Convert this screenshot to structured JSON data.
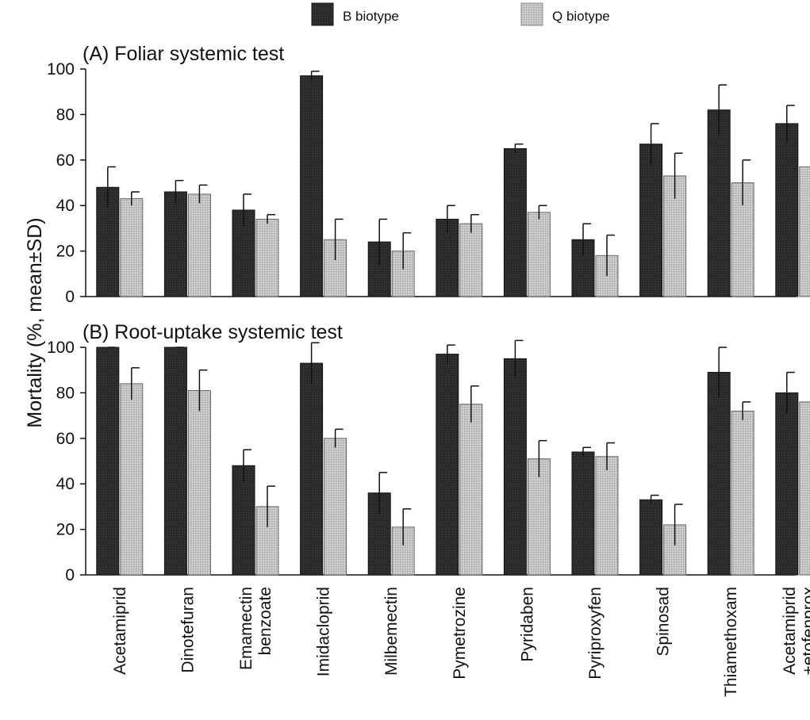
{
  "legend": {
    "items": [
      {
        "label": "B biotype",
        "color": "#2b2b2b"
      },
      {
        "label": "Q biotype",
        "color": "#bdbdbd"
      }
    ]
  },
  "ylabel": "Mortality (%, mean±SD)",
  "chart_data": {
    "type": "bar",
    "categories": [
      [
        "Acetamiprid"
      ],
      [
        "Dinotefuran"
      ],
      [
        "Emamectin",
        "benzoate"
      ],
      [
        "Imidacloprid"
      ],
      [
        "Milbemectin"
      ],
      [
        "Pymetrozine"
      ],
      [
        "Pyridaben"
      ],
      [
        "Pyriproxyfen"
      ],
      [
        "Spinosad"
      ],
      [
        "Thiamethoxam"
      ],
      [
        "Acetamiprid",
        "+etofenprox"
      ]
    ],
    "ylim": [
      0,
      100
    ],
    "yticks": [
      "0",
      "20",
      "40",
      "60",
      "80",
      "100"
    ],
    "panels": [
      {
        "title": "(A) Foliar systemic test",
        "series": [
          {
            "name": "B biotype",
            "values": [
              48,
              46,
              38,
              97,
              24,
              34,
              65,
              25,
              67,
              82,
              76
            ],
            "sd": [
              9,
              5,
              7,
              2,
              10,
              6,
              2,
              7,
              9,
              11,
              8
            ]
          },
          {
            "name": "Q biotype",
            "values": [
              43,
              45,
              34,
              25,
              20,
              32,
              37,
              18,
              53,
              50,
              57
            ],
            "sd": [
              3,
              4,
              2,
              9,
              8,
              4,
              3,
              9,
              10,
              10,
              2
            ]
          }
        ]
      },
      {
        "title": "(B) Root-uptake systemic test",
        "series": [
          {
            "name": "B biotype",
            "values": [
              100,
              100,
              48,
              93,
              36,
              97,
              95,
              54,
              33,
              89,
              80
            ],
            "sd": [
              0,
              0,
              7,
              9,
              9,
              4,
              8,
              2,
              2,
              11,
              9
            ]
          },
          {
            "name": "Q biotype",
            "values": [
              84,
              81,
              30,
              60,
              21,
              75,
              51,
              52,
              22,
              72,
              76
            ],
            "sd": [
              7,
              9,
              9,
              4,
              8,
              8,
              8,
              6,
              9,
              4,
              8
            ]
          }
        ]
      }
    ]
  }
}
